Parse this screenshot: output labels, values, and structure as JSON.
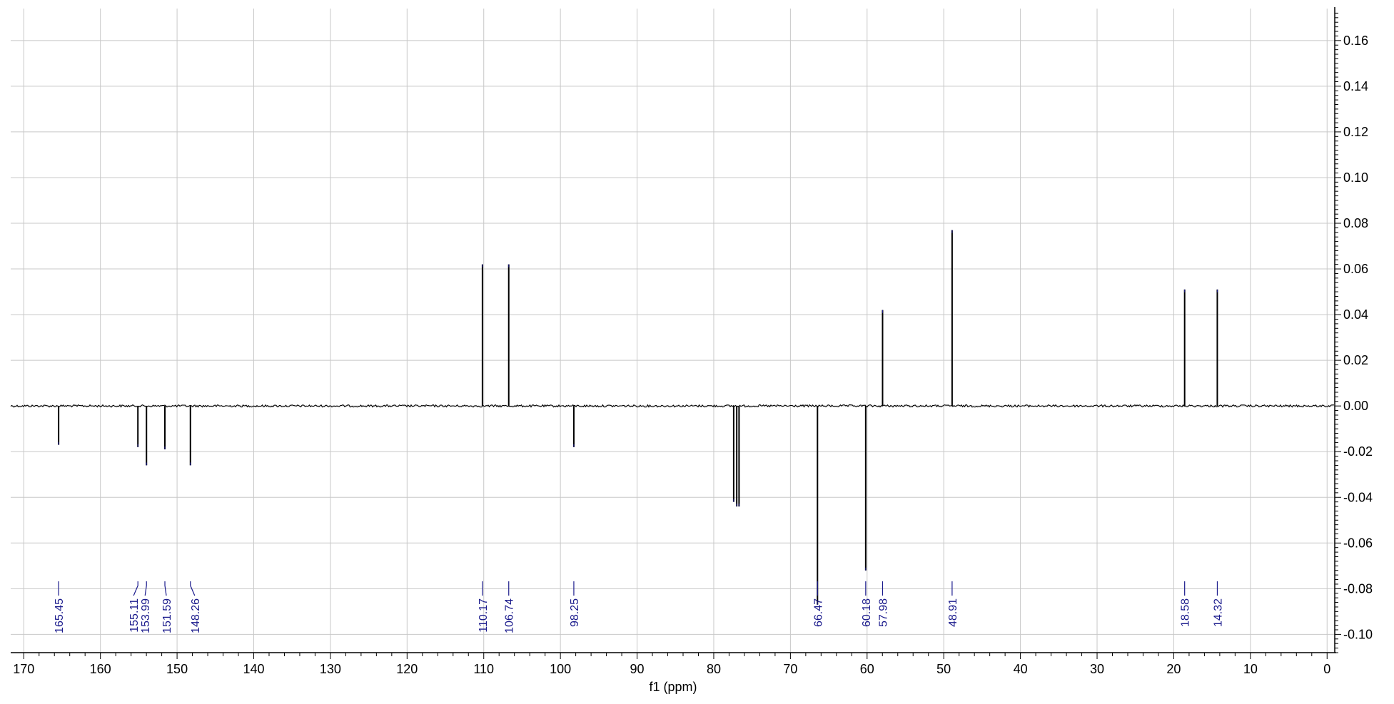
{
  "chart_data": {
    "type": "line",
    "title": "",
    "xlabel": "f1 (ppm)",
    "ylabel": "",
    "xlim": [
      171.7,
      -1.0
    ],
    "ylim": [
      -0.108,
      0.174
    ],
    "x_reversed": true,
    "grid": true,
    "x_ticks": [
      170,
      160,
      150,
      140,
      130,
      120,
      110,
      100,
      90,
      80,
      70,
      60,
      50,
      40,
      30,
      20,
      10,
      0
    ],
    "y_ticks": [
      0.16,
      0.14,
      0.12,
      0.1,
      0.08,
      0.06,
      0.04,
      0.02,
      0.0,
      -0.02,
      -0.04,
      -0.06,
      -0.08,
      -0.1
    ],
    "y_tick_labels": [
      "0.16",
      "0.14",
      "0.12",
      "0.10",
      "0.08",
      "0.06",
      "0.04",
      "0.02",
      "0.00",
      "-0.02",
      "-0.04",
      "-0.06",
      "-0.08",
      "-0.10"
    ],
    "peaks": [
      {
        "ppm": 165.45,
        "label": "165.45",
        "intensity": -0.017
      },
      {
        "ppm": 155.11,
        "label": "155.11",
        "intensity": -0.018
      },
      {
        "ppm": 153.99,
        "label": "153.99",
        "intensity": -0.026
      },
      {
        "ppm": 151.59,
        "label": "151.59",
        "intensity": -0.019
      },
      {
        "ppm": 148.26,
        "label": "148.26",
        "intensity": -0.026
      },
      {
        "ppm": 110.17,
        "label": "110.17",
        "intensity": 0.062
      },
      {
        "ppm": 106.74,
        "label": "106.74",
        "intensity": 0.062
      },
      {
        "ppm": 98.25,
        "label": "98.25",
        "intensity": -0.018
      },
      {
        "ppm": 77.4,
        "label": "",
        "intensity": -0.042
      },
      {
        "ppm": 77.0,
        "label": "",
        "intensity": -0.044
      },
      {
        "ppm": 76.7,
        "label": "",
        "intensity": -0.044
      },
      {
        "ppm": 66.47,
        "label": "66.47",
        "intensity": -0.087
      },
      {
        "ppm": 60.18,
        "label": "60.18",
        "intensity": -0.072
      },
      {
        "ppm": 57.98,
        "label": "57.98",
        "intensity": 0.042
      },
      {
        "ppm": 48.91,
        "label": "48.91",
        "intensity": 0.077
      },
      {
        "ppm": 18.58,
        "label": "18.58",
        "intensity": 0.051
      },
      {
        "ppm": 14.32,
        "label": "14.32",
        "intensity": 0.051
      }
    ],
    "colors": {
      "spectrum": "#000000",
      "peak_label": "#1a1a8c",
      "grid": "#c8c8c8",
      "axis": "#000000"
    }
  }
}
